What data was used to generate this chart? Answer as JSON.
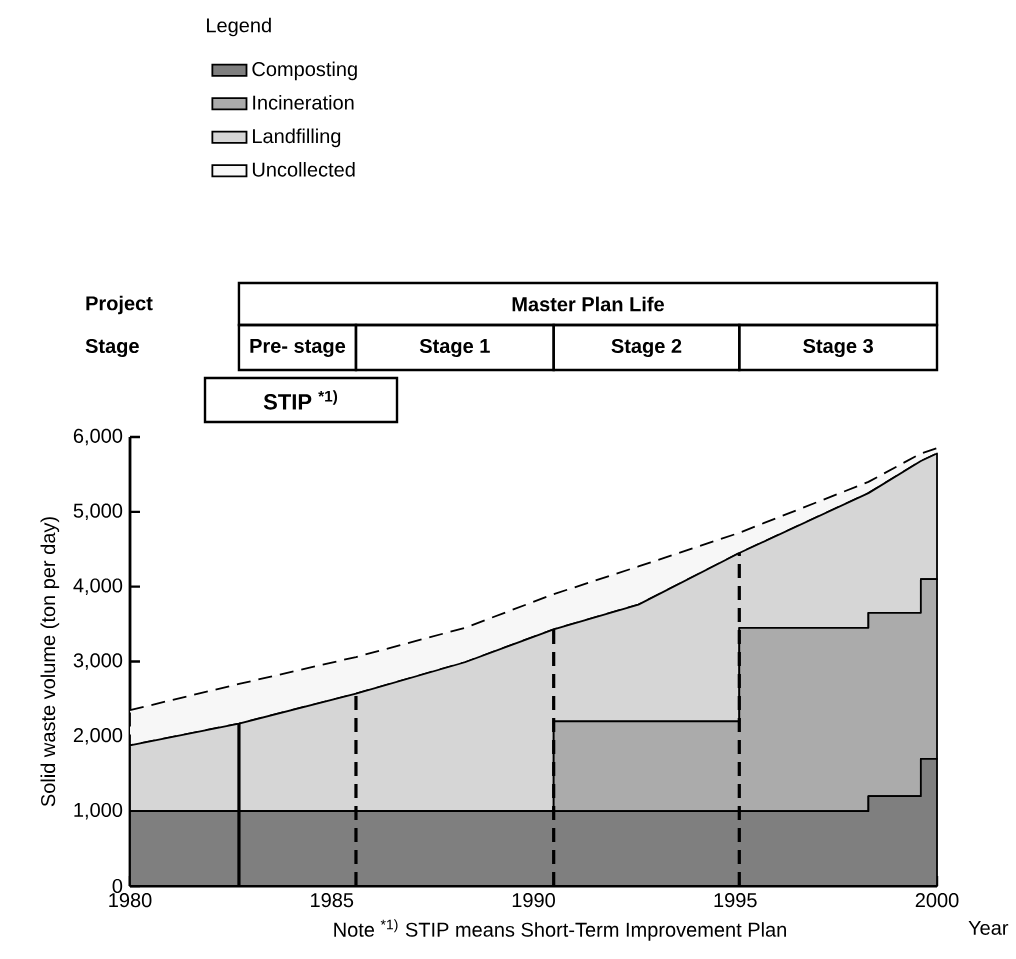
{
  "chart_data": {
    "type": "area",
    "stacked": true,
    "ylabel": "Solid waste volume (ton per day)",
    "xlabel": "Year",
    "legend_title": "Legend",
    "legend": "top left",
    "grid": false,
    "marker": "none",
    "x": [
      1980,
      1982.7,
      1985.6,
      1988.3,
      1990.5,
      1990.5,
      1992.6,
      1995.1,
      1995.1,
      1998.3,
      1998.3,
      1999.6,
      1999.6,
      2000
    ],
    "xlim": [
      1980,
      2000
    ],
    "xticks": [
      1980,
      1985,
      1990,
      1995,
      2000
    ],
    "ylim": [
      0,
      6000
    ],
    "yticks": [
      0,
      {
        "value": 1000,
        "label": "1,000"
      },
      {
        "value": 2000,
        "label": "2,000"
      },
      {
        "value": 3000,
        "label": "3,000"
      },
      {
        "value": 4000,
        "label": "4,000"
      },
      {
        "value": 5000,
        "label": "5,000"
      },
      {
        "value": 6000,
        "label": "6,000"
      }
    ],
    "series": [
      {
        "name": "Composting",
        "color": "#7f7f7f",
        "line_style": "solid",
        "values": [
          1000,
          1000,
          1000,
          1000,
          1000,
          1000,
          1000,
          1000,
          1000,
          1000,
          1200,
          1200,
          1700,
          1700
        ]
      },
      {
        "name": "Incineration",
        "color": "#ababab",
        "line_style": "solid",
        "values": [
          0,
          0,
          0,
          0,
          0,
          1200,
          1200,
          1200,
          2450,
          2450,
          2450,
          2450,
          2400,
          2400
        ]
      },
      {
        "name": "Landfilling",
        "color": "#d6d6d6",
        "line_style": "solid",
        "values": [
          880,
          1170,
          1570,
          1990,
          2430,
          1230,
          1560,
          2250,
          1000,
          1800,
          1600,
          2030,
          1580,
          1680
        ]
      },
      {
        "name": "Uncollected",
        "color": "#f7f7f7",
        "line_style": "dashed",
        "values": [
          470,
          530,
          490,
          460,
          470,
          470,
          510,
          270,
          270,
          150,
          150,
          100,
          100,
          70
        ]
      }
    ],
    "ref_lines": [
      {
        "axis": "x",
        "value": 1982.7,
        "line_style": "solid"
      },
      {
        "axis": "x",
        "value": 1985.6,
        "line_style": "dashed"
      },
      {
        "axis": "x",
        "value": 1990.5,
        "line_style": "dashed"
      },
      {
        "axis": "x",
        "value": 1995.1,
        "line_style": "dashed"
      }
    ],
    "annotations": [
      "Project",
      "Stage",
      "Master Plan Life",
      "Pre- stage",
      "Stage 1",
      "Stage 2",
      "Stage 3",
      "STIP $^{*1)}$",
      "Note $^{*1)}$ STIP means Short-Term Improvement Plan"
    ]
  }
}
